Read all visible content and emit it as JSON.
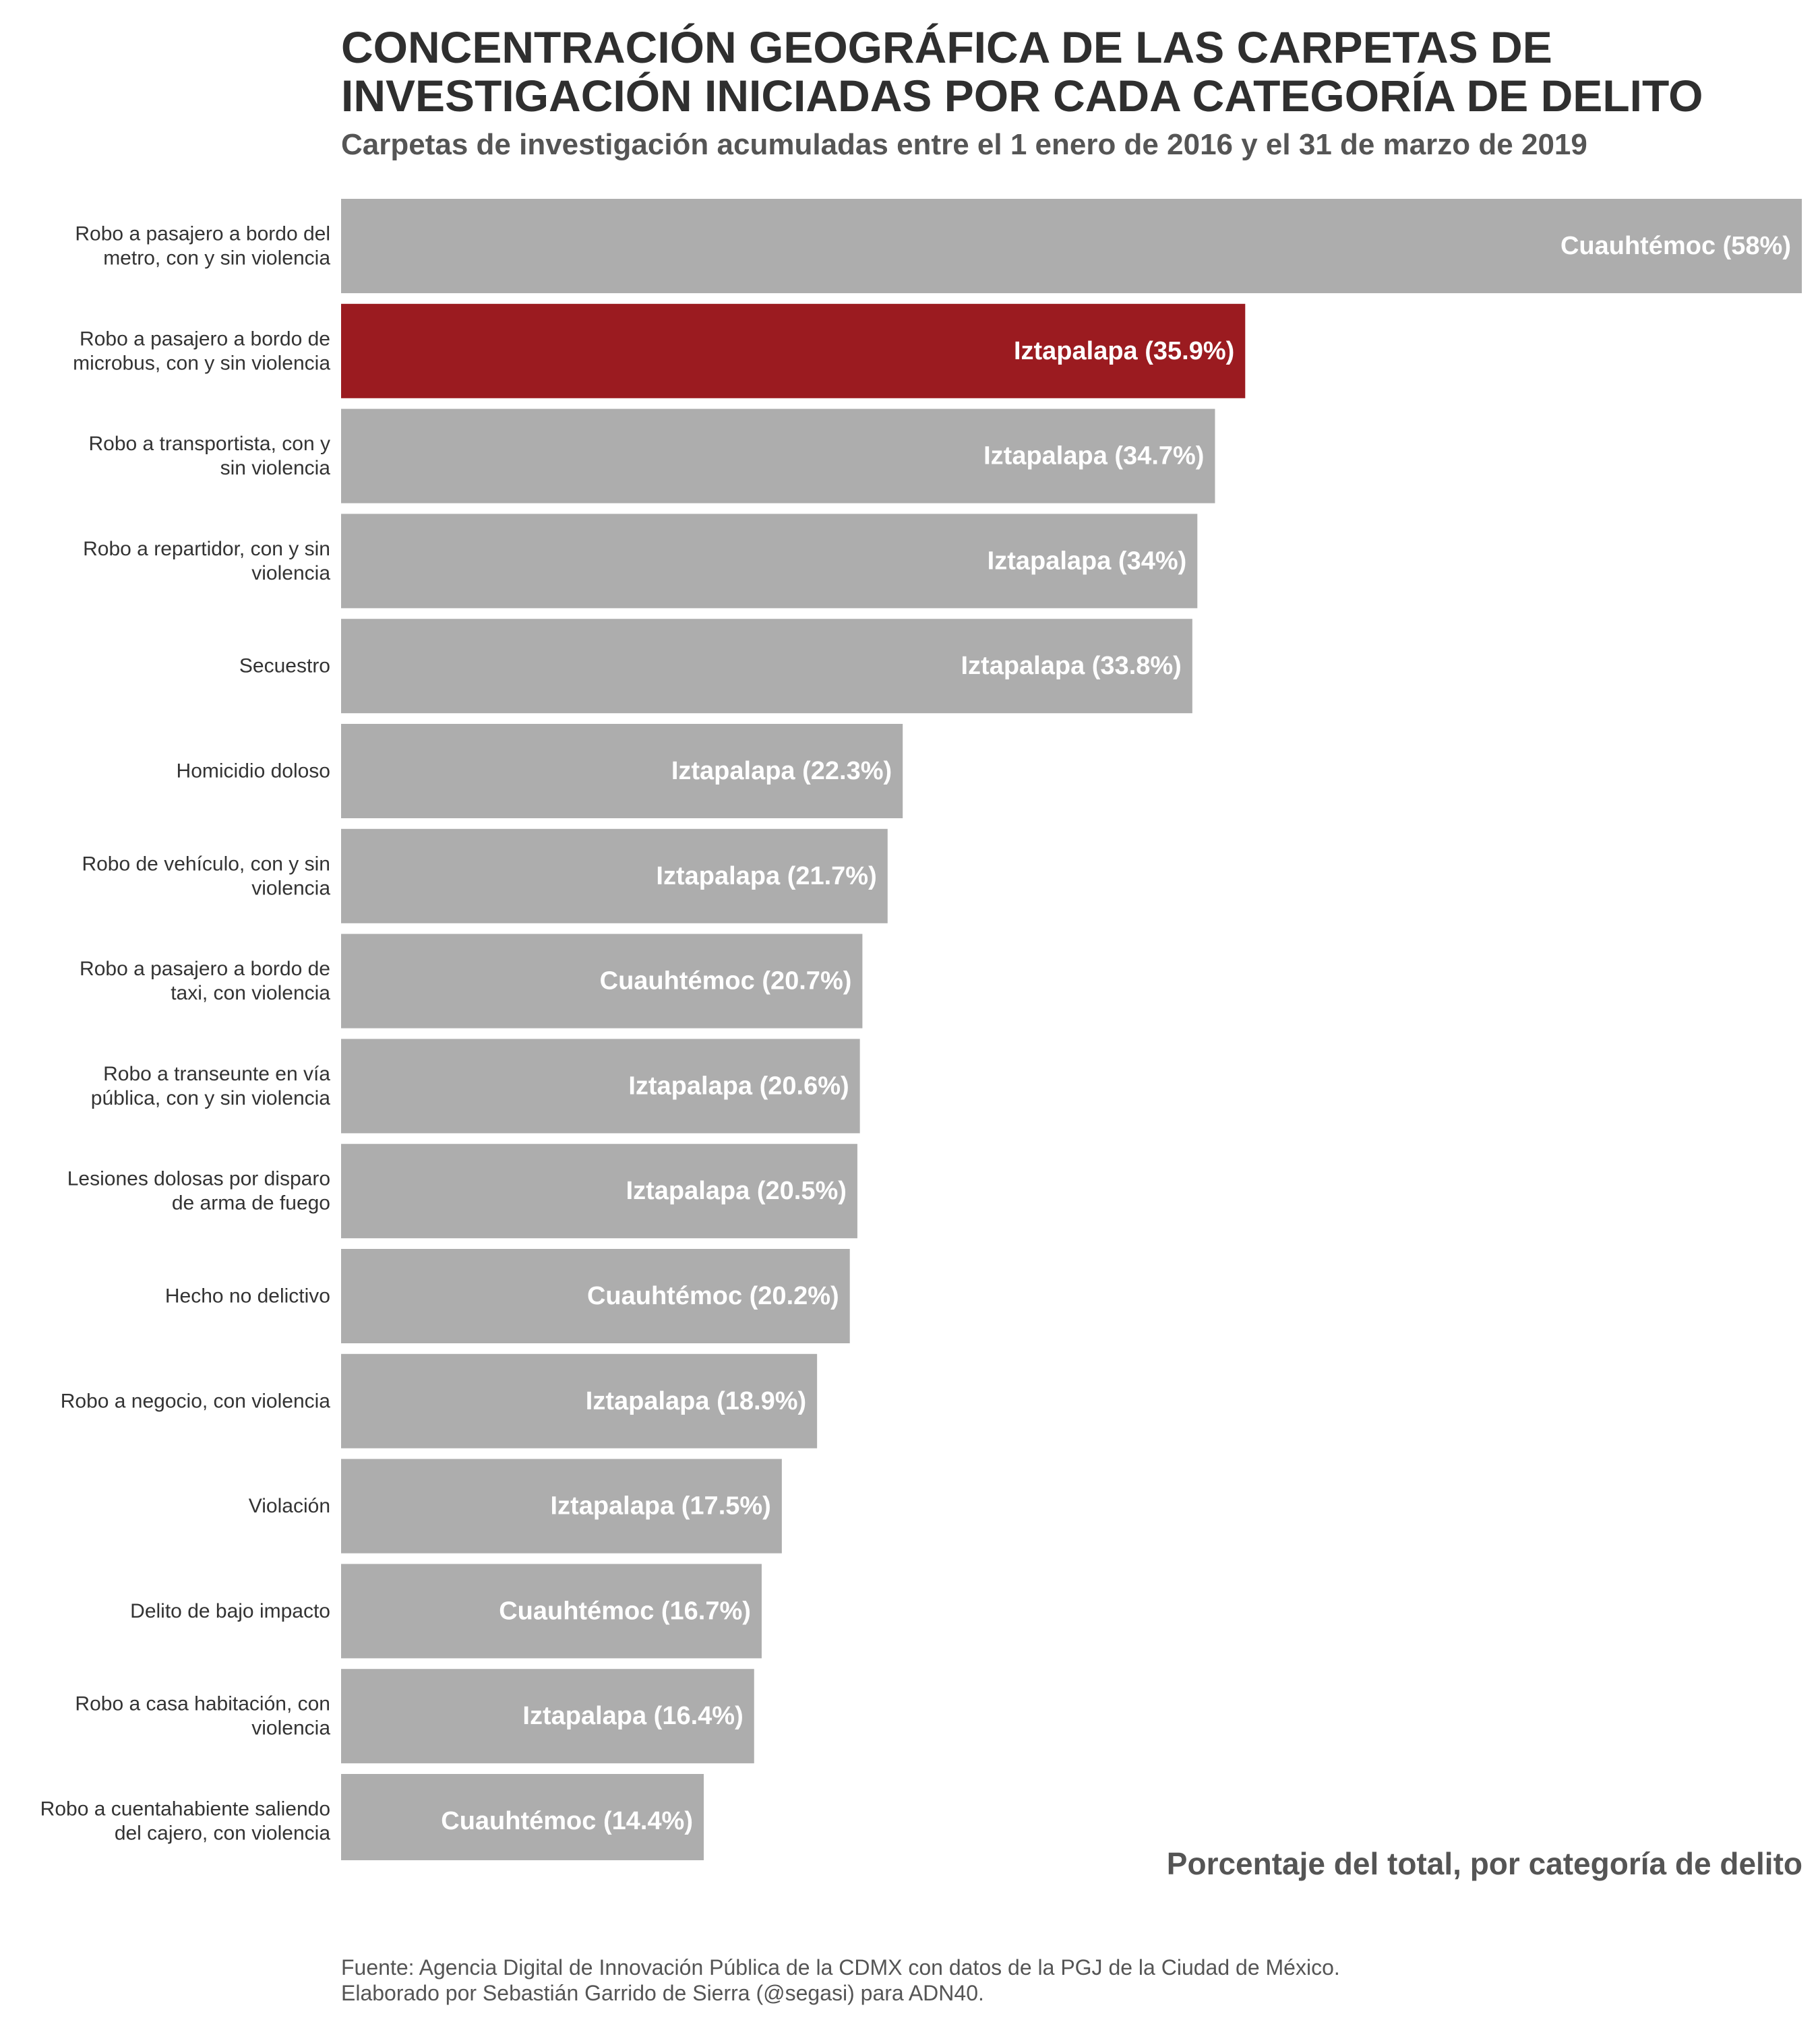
{
  "header": {
    "title_line1": "CONCENTRACIÓN GEOGRÁFICA DE LAS CARPETAS DE",
    "title_line2": "INVESTIGACIÓN INICIADAS POR CADA CATEGORÍA DE DELITO",
    "subtitle": "Carpetas de investigación acumuladas entre el 1 enero de 2016 y el 31 de marzo de 2019"
  },
  "footer": {
    "line1": "Fuente: Agencia Digital de Innovación Pública de la CDMX con datos de la PGJ de la Ciudad de México.",
    "line2": "Elaborado por Sebastián Garrido de Sierra (@segasi) para ADN40."
  },
  "colors": {
    "bar_default": "#adadad",
    "bar_highlight": "#9b1b20",
    "bar_label_text": "#ffffff",
    "category_text": "#333333"
  },
  "chart_data": {
    "type": "bar",
    "orientation": "horizontal",
    "title": "CONCENTRACIÓN GEOGRÁFICA DE LAS CARPETAS DE INVESTIGACIÓN INICIADAS POR CADA CATEGORÍA DE DELITO",
    "subtitle": "Carpetas de investigación acumuladas entre el 1 enero de 2016 y el 31 de marzo de 2019",
    "xlabel": "Porcentaje del total, por categoría de delito",
    "ylabel": "",
    "xlim": [
      0,
      58
    ],
    "grid": false,
    "legend": false,
    "highlight_index": 1,
    "categories": [
      [
        "Robo a pasajero a bordo del",
        "metro, con y sin violencia"
      ],
      [
        "Robo a pasajero a bordo de",
        "microbus, con y sin violencia"
      ],
      [
        "Robo a transportista, con y",
        "sin violencia"
      ],
      [
        "Robo a repartidor, con y sin",
        "violencia"
      ],
      [
        "Secuestro"
      ],
      [
        "Homicidio doloso"
      ],
      [
        "Robo de vehículo, con y sin",
        "violencia"
      ],
      [
        "Robo a pasajero a bordo de",
        "taxi, con violencia"
      ],
      [
        "Robo a transeunte en vía",
        "pública, con y sin violencia"
      ],
      [
        "Lesiones dolosas por disparo",
        "de arma de fuego"
      ],
      [
        "Hecho no delictivo"
      ],
      [
        "Robo a negocio, con violencia"
      ],
      [
        "Violación"
      ],
      [
        "Delito de bajo impacto"
      ],
      [
        "Robo a casa habitación, con",
        "violencia"
      ],
      [
        "Robo a cuentahabiente saliendo",
        "del cajero, con violencia"
      ]
    ],
    "values": [
      58,
      35.9,
      34.7,
      34,
      33.8,
      22.3,
      21.7,
      20.7,
      20.6,
      20.5,
      20.2,
      18.9,
      17.5,
      16.7,
      16.4,
      14.4
    ],
    "data_labels": [
      "Cuauhtémoc (58%)",
      "Iztapalapa (35.9%)",
      "Iztapalapa (34.7%)",
      "Iztapalapa (34%)",
      "Iztapalapa (33.8%)",
      "Iztapalapa (22.3%)",
      "Iztapalapa (21.7%)",
      "Cuauhtémoc (20.7%)",
      "Iztapalapa (20.6%)",
      "Iztapalapa (20.5%)",
      "Cuauhtémoc (20.2%)",
      "Iztapalapa (18.9%)",
      "Iztapalapa (17.5%)",
      "Cuauhtémoc (16.7%)",
      "Iztapalapa (16.4%)",
      "Cuauhtémoc (14.4%)"
    ]
  }
}
